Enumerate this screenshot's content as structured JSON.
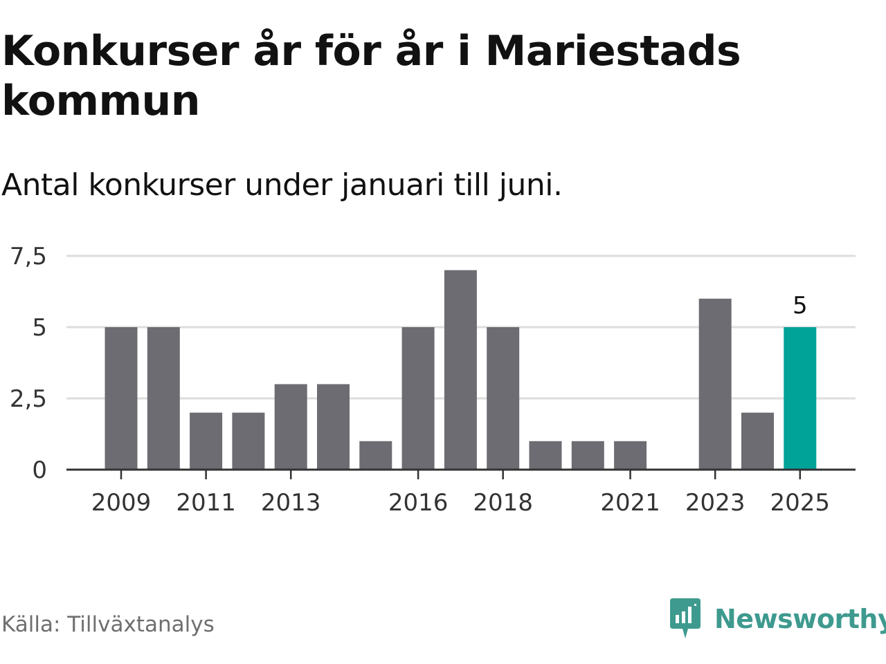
{
  "header": {
    "title": "Konkurser år för år i Mariestads kommun",
    "subtitle": "Antal konkurser under januari till juni."
  },
  "footer": {
    "source": "Källa: Tillväxtanalys",
    "brand": "Newsworthy"
  },
  "colors": {
    "bar": "#6d6c72",
    "highlight": "#00a398",
    "grid": "#dddddd",
    "axis": "#333333",
    "brand": "#3e9a8e"
  },
  "icons": {
    "brand_logo": "newsworthy-logo-icon"
  },
  "chart_data": {
    "type": "bar",
    "categories": [
      "2009",
      "2010",
      "2011",
      "2012",
      "2013",
      "2014",
      "2015",
      "2016",
      "2017",
      "2018",
      "2019",
      "2020",
      "2021",
      "2022",
      "2023",
      "2024",
      "2025"
    ],
    "values": [
      5,
      5,
      2,
      2,
      3,
      3,
      1,
      5,
      7,
      5,
      1,
      1,
      1,
      0,
      6,
      2,
      5
    ],
    "highlight_category": "2025",
    "data_labels": [
      {
        "category": "2025",
        "text": "5"
      }
    ],
    "xticks": [
      "2009",
      "2011",
      "2013",
      "2016",
      "2018",
      "2021",
      "2023",
      "2025"
    ],
    "yticks": [
      0,
      2.5,
      5,
      7.5
    ],
    "ytick_labels": [
      "0",
      "2,5",
      "5",
      "7,5"
    ],
    "ylim": [
      0,
      7.5
    ],
    "grid": true,
    "legend": "none",
    "xlabel": "",
    "ylabel": ""
  }
}
